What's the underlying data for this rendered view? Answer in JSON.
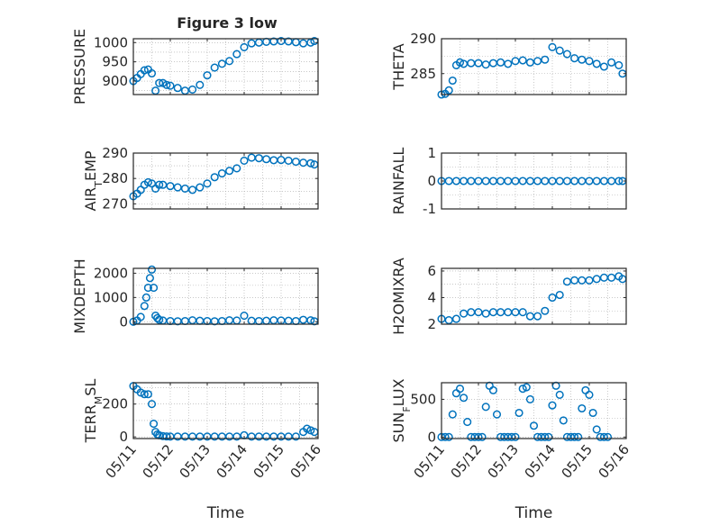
{
  "figure": {
    "title": "Figure 3 low",
    "xlabel": "Time"
  },
  "colors": {
    "series": "#0072bd",
    "axes": "#262626",
    "grid": "#a8a8a8"
  },
  "chart_data": [
    {
      "type": "scatter",
      "marker": "circle",
      "ylabel": "PRESSURE",
      "ylabel_sub": "",
      "ylabel_rest": "",
      "xlim": [
        "05/11",
        "05/16"
      ],
      "xticks": [
        "05/11",
        "05/12",
        "05/13",
        "05/14",
        "05/15",
        "05/16"
      ],
      "ylim": [
        865,
        1010
      ],
      "yticks": [
        900,
        950,
        1000
      ],
      "grid": true,
      "x_days": [
        0,
        0.1,
        0.2,
        0.3,
        0.4,
        0.5,
        0.6,
        0.7,
        0.8,
        0.9,
        1.0,
        1.2,
        1.4,
        1.6,
        1.8,
        2.0,
        2.2,
        2.4,
        2.6,
        2.8,
        3.0,
        3.2,
        3.4,
        3.6,
        3.8,
        4.0,
        4.2,
        4.4,
        4.6,
        4.8,
        4.9
      ],
      "y": [
        900,
        908,
        918,
        928,
        930,
        920,
        875,
        895,
        895,
        890,
        888,
        882,
        875,
        878,
        890,
        915,
        935,
        945,
        952,
        970,
        988,
        998,
        1000,
        1002,
        1003,
        1004,
        1003,
        1001,
        998,
        1000,
        1004
      ]
    },
    {
      "type": "scatter",
      "marker": "circle",
      "ylabel": "THETA",
      "ylabel_sub": "",
      "ylabel_rest": "",
      "xlim": [
        "05/11",
        "05/16"
      ],
      "xticks": [
        "05/11",
        "05/12",
        "05/13",
        "05/14",
        "05/15",
        "05/16"
      ],
      "ylim": [
        282,
        290
      ],
      "yticks": [
        285,
        290
      ],
      "grid": true,
      "x_days": [
        0,
        0.1,
        0.2,
        0.3,
        0.4,
        0.5,
        0.6,
        0.8,
        1.0,
        1.2,
        1.4,
        1.6,
        1.8,
        2.0,
        2.2,
        2.4,
        2.6,
        2.8,
        3.0,
        3.2,
        3.4,
        3.6,
        3.8,
        4.0,
        4.2,
        4.4,
        4.6,
        4.8,
        4.9
      ],
      "y": [
        282,
        282.1,
        282.6,
        284,
        286.2,
        286.6,
        286.4,
        286.5,
        286.5,
        286.3,
        286.5,
        286.6,
        286.4,
        286.8,
        286.9,
        286.6,
        286.8,
        287.0,
        288.8,
        288.3,
        287.8,
        287.2,
        287.0,
        286.8,
        286.4,
        286.0,
        286.6,
        286.2,
        285.0
      ]
    },
    {
      "type": "scatter",
      "marker": "circle",
      "ylabel": "AIR",
      "ylabel_sub": "T",
      "ylabel_rest": "EMP",
      "xlim": [
        "05/11",
        "05/16"
      ],
      "xticks": [
        "05/11",
        "05/12",
        "05/13",
        "05/14",
        "05/15",
        "05/16"
      ],
      "ylim": [
        268,
        290
      ],
      "yticks": [
        270,
        280,
        290
      ],
      "grid": true,
      "x_days": [
        0,
        0.1,
        0.2,
        0.3,
        0.4,
        0.5,
        0.6,
        0.7,
        0.8,
        1.0,
        1.2,
        1.4,
        1.6,
        1.8,
        2.0,
        2.2,
        2.4,
        2.6,
        2.8,
        3.0,
        3.2,
        3.4,
        3.6,
        3.8,
        4.0,
        4.2,
        4.4,
        4.6,
        4.8,
        4.9
      ],
      "y": [
        273,
        274,
        275.5,
        277.5,
        278.5,
        278,
        276,
        277.5,
        277.5,
        277,
        276.5,
        276,
        275.5,
        276.5,
        278,
        280.5,
        282,
        283,
        284,
        287,
        288.2,
        288,
        287.6,
        287.2,
        287.3,
        287,
        286.6,
        286.2,
        286,
        285.5
      ]
    },
    {
      "type": "scatter",
      "marker": "circle",
      "ylabel": "RAINFALL",
      "ylabel_sub": "",
      "ylabel_rest": "",
      "xlim": [
        "05/11",
        "05/16"
      ],
      "xticks": [
        "05/11",
        "05/12",
        "05/13",
        "05/14",
        "05/15",
        "05/16"
      ],
      "ylim": [
        -1,
        1
      ],
      "yticks": [
        -1,
        0,
        1
      ],
      "grid": true,
      "x_days": [
        0,
        0.2,
        0.4,
        0.6,
        0.8,
        1.0,
        1.2,
        1.4,
        1.6,
        1.8,
        2.0,
        2.2,
        2.4,
        2.6,
        2.8,
        3.0,
        3.2,
        3.4,
        3.6,
        3.8,
        4.0,
        4.2,
        4.4,
        4.6,
        4.8,
        4.9
      ],
      "y": [
        0,
        0,
        0,
        0,
        0,
        0,
        0,
        0,
        0,
        0,
        0,
        0,
        0,
        0,
        0,
        0,
        0,
        0,
        0,
        0,
        0,
        0,
        0,
        0,
        0,
        0
      ]
    },
    {
      "type": "scatter",
      "marker": "circle",
      "ylabel": "MIXDEPTH",
      "ylabel_sub": "",
      "ylabel_rest": "",
      "xlim": [
        "05/11",
        "05/16"
      ],
      "xticks": [
        "05/11",
        "05/12",
        "05/13",
        "05/14",
        "05/15",
        "05/16"
      ],
      "ylim": [
        -100,
        2200
      ],
      "yticks": [
        0,
        1000,
        2000
      ],
      "grid": true,
      "x_days": [
        0,
        0.1,
        0.2,
        0.3,
        0.35,
        0.4,
        0.45,
        0.5,
        0.55,
        0.6,
        0.65,
        0.7,
        0.8,
        1.0,
        1.2,
        1.4,
        1.6,
        1.8,
        2.0,
        2.2,
        2.4,
        2.6,
        2.8,
        3.0,
        3.2,
        3.4,
        3.6,
        3.8,
        4.0,
        4.2,
        4.4,
        4.6,
        4.8,
        4.9
      ],
      "y": [
        0,
        50,
        200,
        650,
        1000,
        1400,
        1800,
        2150,
        1400,
        250,
        150,
        80,
        50,
        30,
        20,
        30,
        60,
        40,
        30,
        20,
        30,
        60,
        50,
        250,
        40,
        30,
        40,
        60,
        50,
        40,
        30,
        80,
        60,
        20
      ]
    },
    {
      "type": "scatter",
      "marker": "circle",
      "ylabel": "H2OMIXRA",
      "ylabel_sub": "",
      "ylabel_rest": "",
      "xlim": [
        "05/11",
        "05/16"
      ],
      "xticks": [
        "05/11",
        "05/12",
        "05/13",
        "05/14",
        "05/15",
        "05/16"
      ],
      "ylim": [
        2,
        6.2
      ],
      "yticks": [
        2,
        4,
        6
      ],
      "grid": true,
      "x_days": [
        0,
        0.2,
        0.4,
        0.6,
        0.8,
        1.0,
        1.2,
        1.4,
        1.6,
        1.8,
        2.0,
        2.2,
        2.4,
        2.6,
        2.8,
        3.0,
        3.2,
        3.4,
        3.6,
        3.8,
        4.0,
        4.2,
        4.4,
        4.6,
        4.8,
        4.9
      ],
      "y": [
        2.4,
        2.3,
        2.4,
        2.8,
        2.9,
        2.9,
        2.8,
        2.9,
        2.9,
        2.9,
        2.9,
        2.9,
        2.6,
        2.6,
        3.0,
        4.0,
        4.2,
        5.2,
        5.3,
        5.3,
        5.3,
        5.4,
        5.5,
        5.5,
        5.6,
        5.4
      ]
    },
    {
      "type": "scatter",
      "marker": "circle",
      "ylabel": "TERR",
      "ylabel_sub": "M",
      "ylabel_rest": "SL",
      "xlim": [
        "05/11",
        "05/16"
      ],
      "xticks": [
        "05/11",
        "05/12",
        "05/13",
        "05/14",
        "05/15",
        "05/16"
      ],
      "ylim": [
        -10,
        330
      ],
      "yticks": [
        0,
        200
      ],
      "grid": true,
      "x_days": [
        0,
        0.1,
        0.2,
        0.3,
        0.4,
        0.5,
        0.55,
        0.6,
        0.65,
        0.7,
        0.8,
        0.9,
        1.0,
        1.2,
        1.4,
        1.6,
        1.8,
        2.0,
        2.2,
        2.4,
        2.6,
        2.8,
        3.0,
        3.2,
        3.4,
        3.6,
        3.8,
        4.0,
        4.2,
        4.4,
        4.6,
        4.7,
        4.8,
        4.9
      ],
      "y": [
        310,
        290,
        270,
        260,
        260,
        200,
        80,
        30,
        15,
        10,
        5,
        3,
        2,
        2,
        2,
        2,
        2,
        2,
        2,
        2,
        2,
        2,
        10,
        2,
        2,
        2,
        2,
        2,
        2,
        2,
        30,
        50,
        40,
        30
      ]
    },
    {
      "type": "scatter",
      "marker": "circle",
      "ylabel": "SUN",
      "ylabel_sub": "F",
      "ylabel_rest": "LUX",
      "xlim": [
        "05/11",
        "05/16"
      ],
      "xticks": [
        "05/11",
        "05/12",
        "05/13",
        "05/14",
        "05/15",
        "05/16"
      ],
      "ylim": [
        -20,
        720
      ],
      "yticks": [
        0,
        500
      ],
      "grid": true,
      "x_days": [
        0,
        0.1,
        0.2,
        0.3,
        0.4,
        0.5,
        0.6,
        0.7,
        0.8,
        0.9,
        1.0,
        1.1,
        1.2,
        1.3,
        1.4,
        1.5,
        1.6,
        1.7,
        1.8,
        1.9,
        2.0,
        2.1,
        2.2,
        2.3,
        2.4,
        2.5,
        2.6,
        2.7,
        2.8,
        2.9,
        3.0,
        3.1,
        3.2,
        3.3,
        3.4,
        3.5,
        3.6,
        3.7,
        3.8,
        3.9,
        4.0,
        4.1,
        4.2,
        4.3,
        4.4,
        4.5
      ],
      "y": [
        0,
        0,
        0,
        300,
        580,
        640,
        520,
        200,
        0,
        0,
        0,
        0,
        400,
        680,
        620,
        300,
        0,
        0,
        0,
        0,
        0,
        320,
        640,
        660,
        500,
        150,
        0,
        0,
        0,
        0,
        420,
        680,
        560,
        220,
        0,
        0,
        0,
        0,
        380,
        620,
        560,
        320,
        100,
        0,
        0,
        0
      ]
    }
  ]
}
